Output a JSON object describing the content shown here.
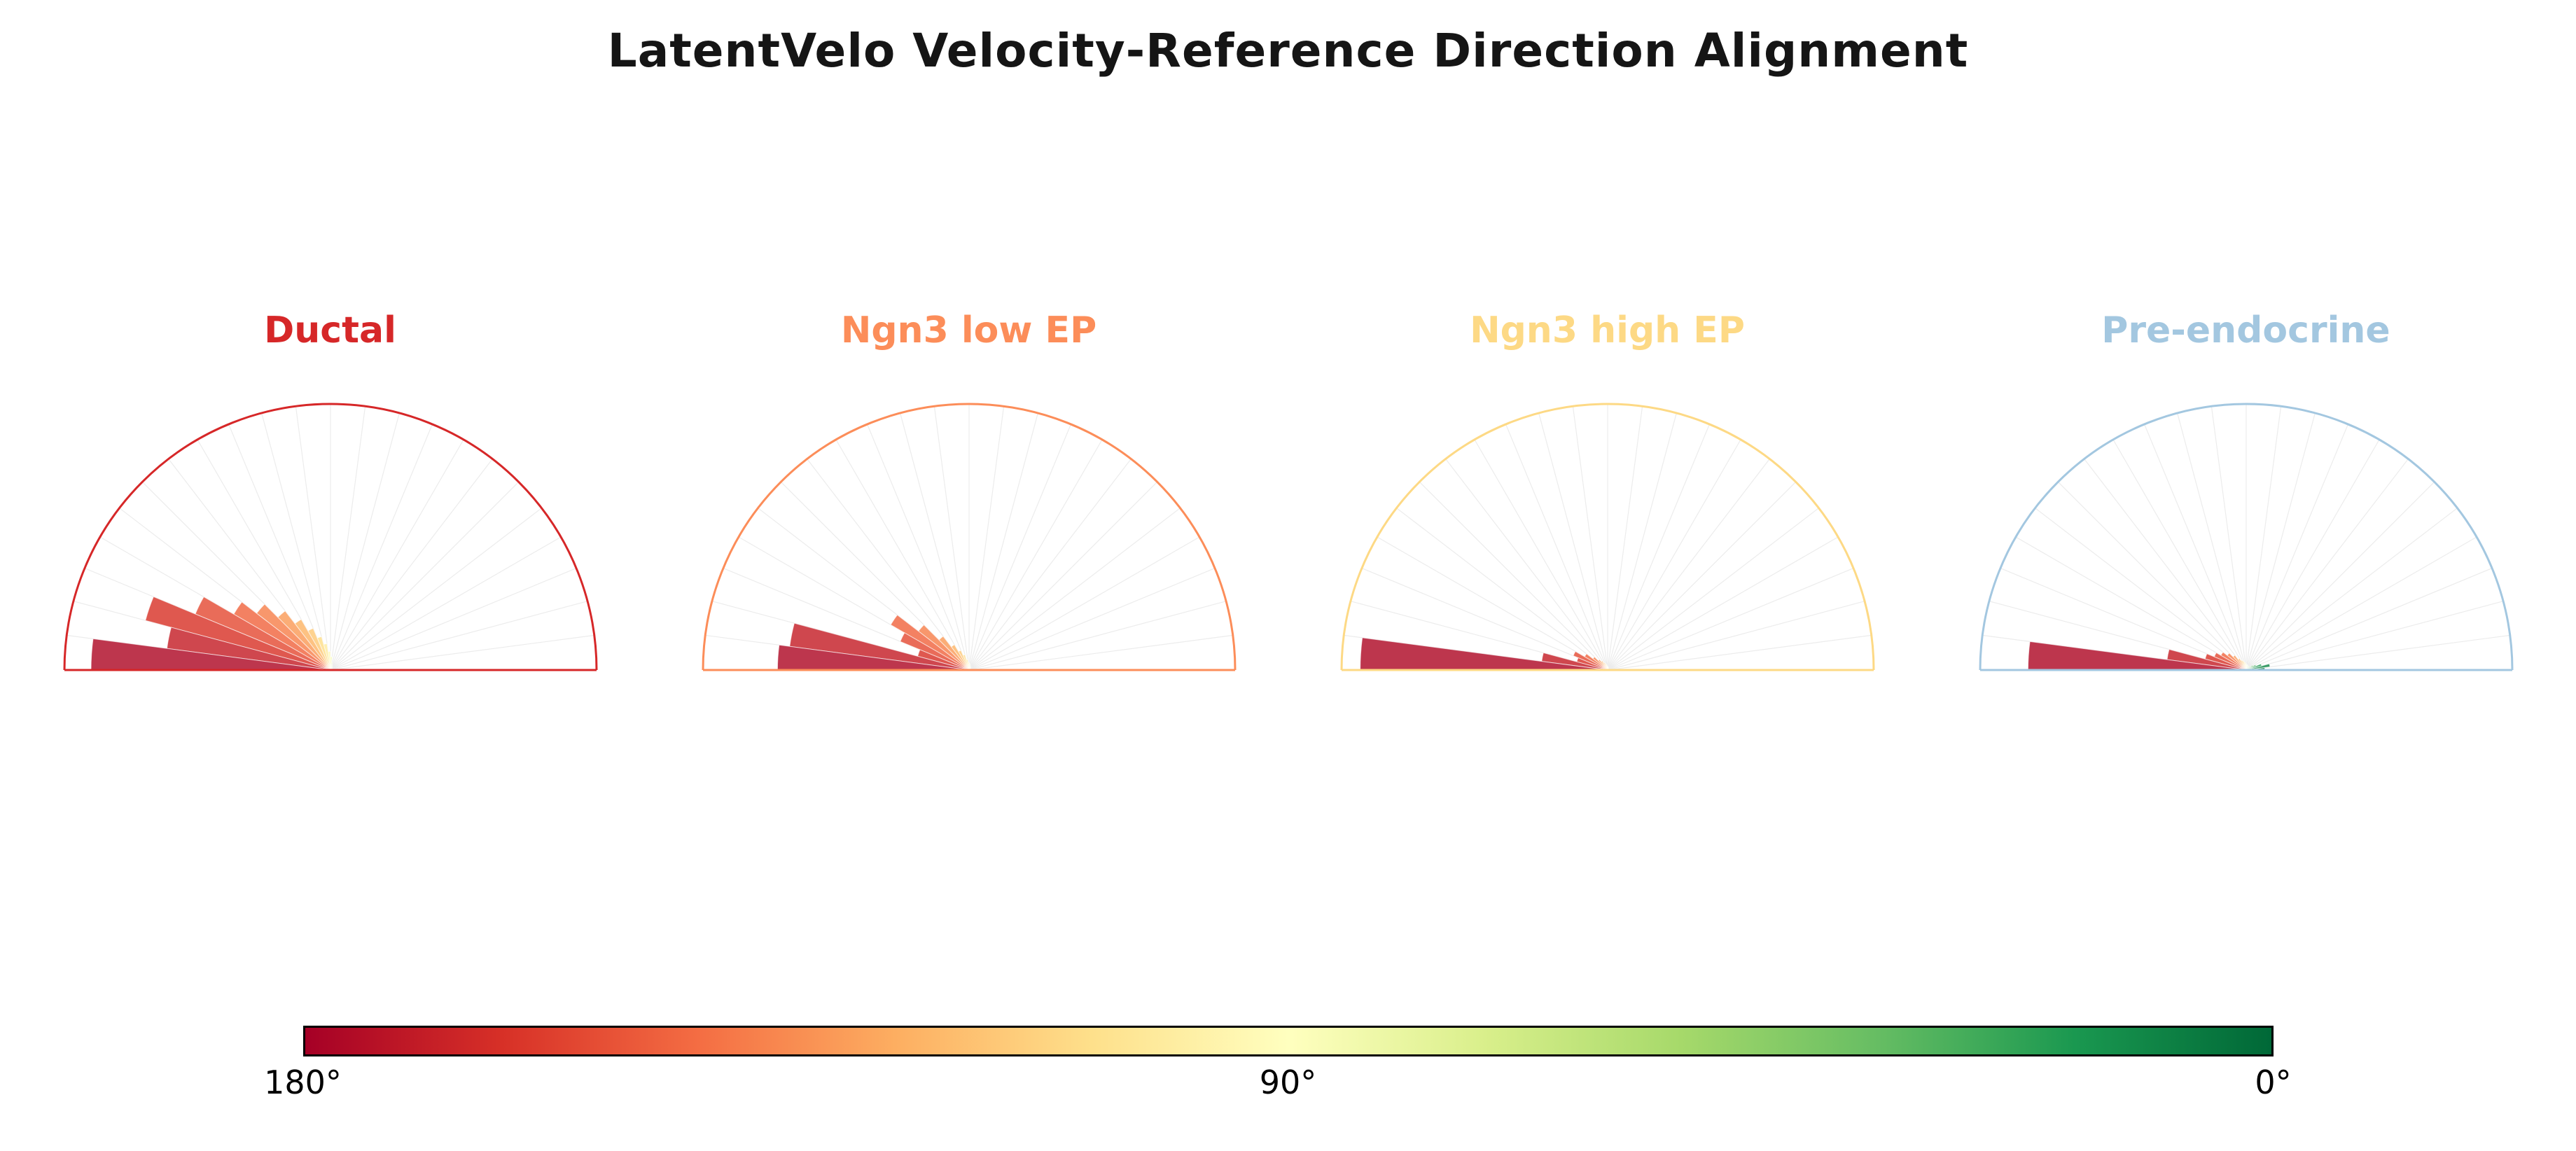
{
  "chart_data": {
    "type": "bar",
    "projection": "polar",
    "subtype": "half_rose_histogram",
    "title": "LatentVelo Velocity-Reference Direction Alignment",
    "theta_range_deg": [
      0,
      180
    ],
    "rlim": [
      0,
      1
    ],
    "grid_spoke_step_deg": 7.5,
    "bin_width_deg": 7.5,
    "bin_centers_deg": [
      3.75,
      11.25,
      18.75,
      26.25,
      33.75,
      41.25,
      48.75,
      56.25,
      63.75,
      71.25,
      78.75,
      86.25,
      93.75,
      101.25,
      108.75,
      116.25,
      123.75,
      131.25,
      138.75,
      146.25,
      153.75,
      161.25,
      168.75,
      176.25
    ],
    "colormap_stops_0deg_to_180deg": [
      "#006837",
      "#1a9850",
      "#66bd63",
      "#a6d96a",
      "#d9ef8b",
      "#ffffbf",
      "#fee08b",
      "#fdae61",
      "#f46d43",
      "#d73027",
      "#a50026"
    ],
    "panels": [
      {
        "name": "Ductal",
        "color": "#d62728",
        "values": [
          0.003,
          0.003,
          0.004,
          0.005,
          0.006,
          0.008,
          0.01,
          0.01,
          0.015,
          0.02,
          0.03,
          0.05,
          0.07,
          0.1,
          0.13,
          0.17,
          0.22,
          0.28,
          0.35,
          0.42,
          0.55,
          0.72,
          0.62,
          0.9
        ]
      },
      {
        "name": "Ngn3 low EP",
        "color": "#fc8d59",
        "values": [
          0.003,
          0.003,
          0.004,
          0.004,
          0.005,
          0.006,
          0.008,
          0.01,
          0.012,
          0.015,
          0.02,
          0.025,
          0.03,
          0.04,
          0.06,
          0.08,
          0.11,
          0.16,
          0.24,
          0.34,
          0.28,
          0.2,
          0.68,
          0.72
        ]
      },
      {
        "name": "Ngn3 high EP",
        "color": "#fdd985",
        "values": [
          0.002,
          0.002,
          0.003,
          0.003,
          0.003,
          0.004,
          0.004,
          0.005,
          0.006,
          0.008,
          0.01,
          0.012,
          0.015,
          0.02,
          0.025,
          0.03,
          0.04,
          0.05,
          0.07,
          0.1,
          0.14,
          0.12,
          0.25,
          0.93
        ]
      },
      {
        "name": "Pre-endocrine",
        "color": "#a3c7e0",
        "values": [
          0.07,
          0.09,
          0.06,
          0.04,
          0.03,
          0.02,
          0.015,
          0.015,
          0.016,
          0.018,
          0.02,
          0.02,
          0.025,
          0.03,
          0.035,
          0.04,
          0.05,
          0.07,
          0.09,
          0.11,
          0.13,
          0.16,
          0.3,
          0.82
        ]
      }
    ],
    "colorbar": {
      "tick_labels": [
        "180°",
        "90°",
        "0°"
      ],
      "left_value_deg": 180,
      "right_value_deg": 0
    }
  }
}
